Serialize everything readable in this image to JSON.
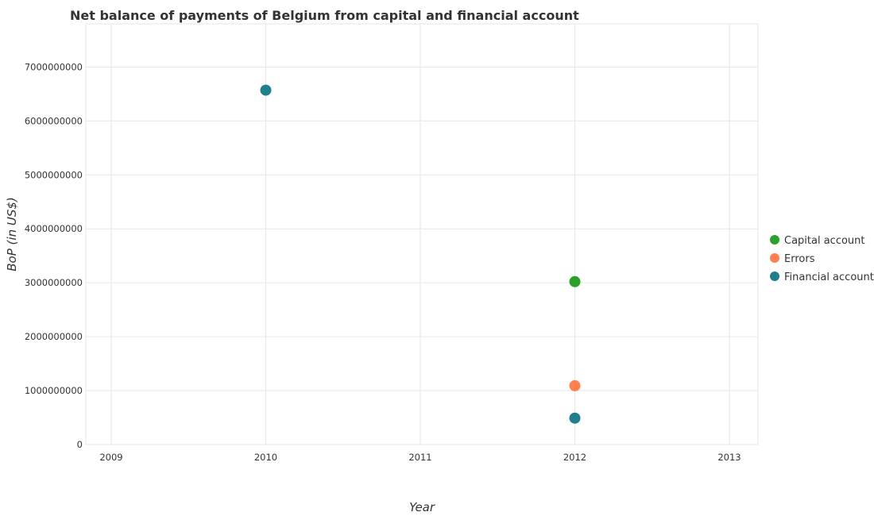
{
  "chart_data": {
    "type": "scatter",
    "title": "Net balance of payments of Belgium from capital and financial account",
    "xlabel": "Year",
    "ylabel": "BoP (in US$)",
    "categories": [
      "2009",
      "2010",
      "2011",
      "2012",
      "2013"
    ],
    "ylim": [
      0,
      7800000000
    ],
    "yticks": [
      0,
      1000000000,
      2000000000,
      3000000000,
      4000000000,
      5000000000,
      6000000000,
      7000000000
    ],
    "ytick_labels": [
      "0",
      "1000000000",
      "2000000000",
      "3000000000",
      "4000000000",
      "5000000000",
      "6000000000",
      "7000000000"
    ],
    "grid": true,
    "legend_position": "right",
    "series": [
      {
        "name": "Capital account",
        "color": "#2ca02c",
        "values": [
          null,
          null,
          null,
          3020000000,
          null
        ]
      },
      {
        "name": "Errors",
        "color": "#ff7f50",
        "values": [
          null,
          null,
          null,
          1090000000,
          null
        ]
      },
      {
        "name": "Financial account",
        "color": "#1f7f8c",
        "values": [
          null,
          6570000000,
          null,
          490000000,
          null
        ]
      }
    ]
  }
}
